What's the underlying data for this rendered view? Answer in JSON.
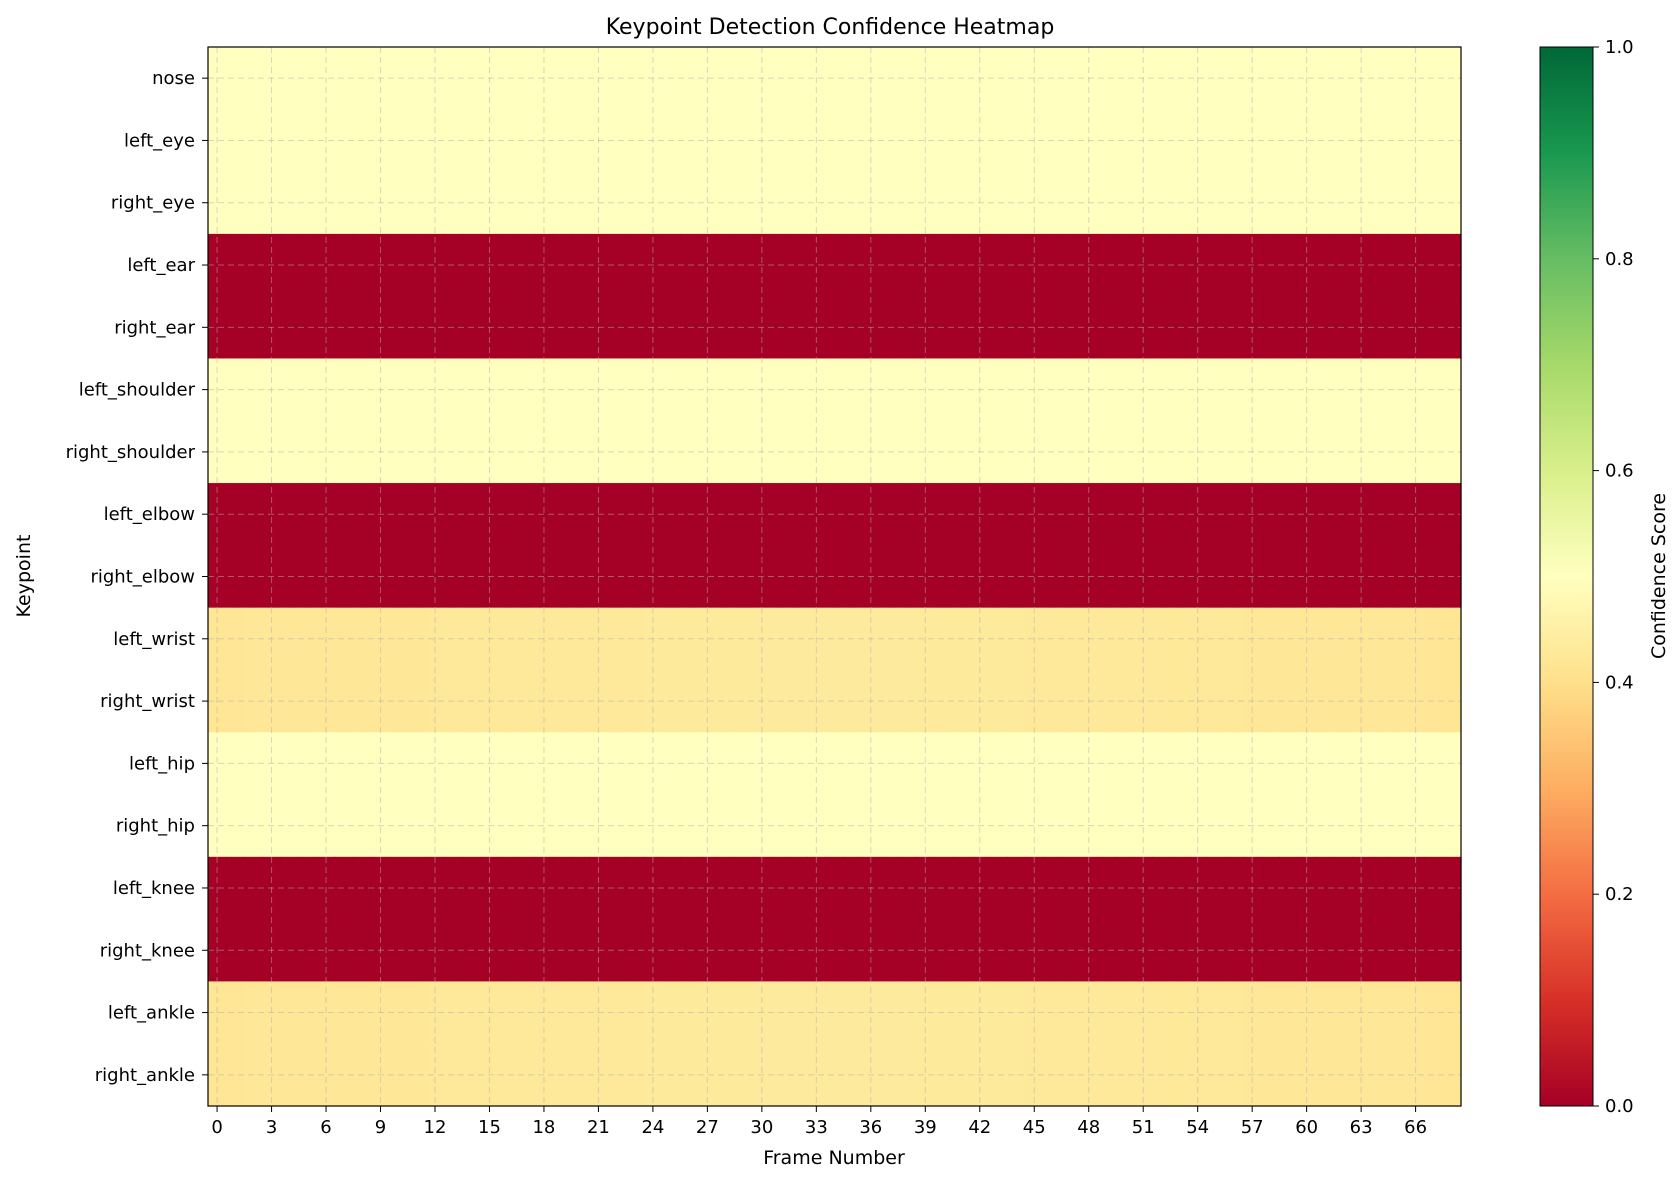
{
  "chart_data": {
    "type": "heatmap",
    "title": "Keypoint Detection Confidence Heatmap",
    "xlabel": "Frame Number",
    "ylabel": "Keypoint",
    "colorbar_label": "Confidence Score",
    "colormap": "RdYlGn",
    "vmin": 0.0,
    "vmax": 1.0,
    "n_frames": 69,
    "x_ticks": [
      0,
      3,
      6,
      9,
      12,
      15,
      18,
      21,
      24,
      27,
      30,
      33,
      36,
      39,
      42,
      45,
      48,
      51,
      54,
      57,
      60,
      63,
      66
    ],
    "colorbar_ticks": [
      "0.0",
      "0.2",
      "0.4",
      "0.6",
      "0.8",
      "1.0"
    ],
    "grid": true,
    "keypoints": [
      "nose",
      "left_eye",
      "right_eye",
      "left_ear",
      "right_ear",
      "left_shoulder",
      "right_shoulder",
      "left_elbow",
      "right_elbow",
      "left_wrist",
      "right_wrist",
      "left_hip",
      "right_hip",
      "left_knee",
      "right_knee",
      "left_ankle",
      "right_ankle"
    ],
    "row_confidence": [
      0.5,
      0.5,
      0.5,
      0.0,
      0.0,
      0.5,
      0.5,
      0.0,
      0.0,
      0.42,
      0.42,
      0.5,
      0.5,
      0.0,
      0.0,
      0.42,
      0.42
    ],
    "row_variation": [
      0,
      0,
      0,
      0,
      0,
      0,
      0,
      0,
      0,
      0.012,
      0.012,
      0,
      0,
      0,
      0,
      0.012,
      0.012
    ]
  }
}
